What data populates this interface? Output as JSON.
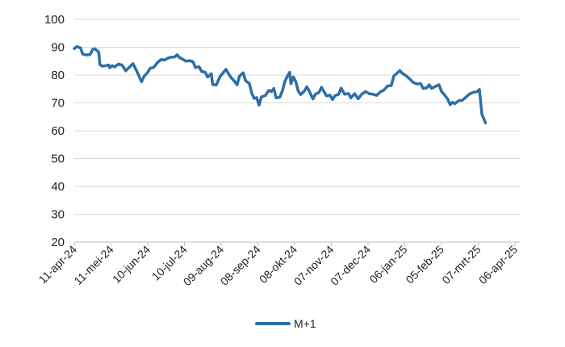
{
  "chart_data": {
    "type": "line",
    "title": "",
    "xlabel": "",
    "ylabel": "",
    "ylim": [
      20,
      100
    ],
    "yticks": [
      20,
      30,
      40,
      50,
      60,
      70,
      80,
      90,
      100
    ],
    "xlim": [
      "2024-04-11",
      "2025-04-10"
    ],
    "grid": "horizontal",
    "legend_position": "bottom",
    "color": "#2e6ea6",
    "x_ticks": [
      {
        "date": "2024-04-11",
        "label": "11-apr-24"
      },
      {
        "date": "2024-05-11",
        "label": "11-mei-24"
      },
      {
        "date": "2024-06-10",
        "label": "10-jun-24"
      },
      {
        "date": "2024-07-10",
        "label": "10-jul-24"
      },
      {
        "date": "2024-08-09",
        "label": "09-aug-24"
      },
      {
        "date": "2024-09-08",
        "label": "08-sep-24"
      },
      {
        "date": "2024-10-08",
        "label": "08-okt-24"
      },
      {
        "date": "2024-11-07",
        "label": "07-nov-24"
      },
      {
        "date": "2024-12-07",
        "label": "07-dec-24"
      },
      {
        "date": "2025-01-06",
        "label": "06-jan-25"
      },
      {
        "date": "2025-02-05",
        "label": "05-feb-25"
      },
      {
        "date": "2025-03-07",
        "label": "07-mrt-25"
      },
      {
        "date": "2025-04-06",
        "label": "06-apr-25"
      }
    ],
    "series": [
      {
        "name": "M+1",
        "points": [
          [
            "2024-04-11",
            89.5
          ],
          [
            "2024-04-13",
            90.2
          ],
          [
            "2024-04-16",
            89.8
          ],
          [
            "2024-04-18",
            87.5
          ],
          [
            "2024-04-21",
            87.2
          ],
          [
            "2024-04-24",
            87.4
          ],
          [
            "2024-04-26",
            89.2
          ],
          [
            "2024-04-28",
            89.4
          ],
          [
            "2024-05-01",
            88.2
          ],
          [
            "2024-05-02",
            83.8
          ],
          [
            "2024-05-04",
            83.2
          ],
          [
            "2024-05-07",
            83.4
          ],
          [
            "2024-05-09",
            83.6
          ],
          [
            "2024-05-10",
            82.6
          ],
          [
            "2024-05-12",
            83.4
          ],
          [
            "2024-05-14",
            82.9
          ],
          [
            "2024-05-17",
            83.9
          ],
          [
            "2024-05-20",
            83.6
          ],
          [
            "2024-05-22",
            82.3
          ],
          [
            "2024-05-23",
            81.5
          ],
          [
            "2024-05-26",
            82.8
          ],
          [
            "2024-05-29",
            84.1
          ],
          [
            "2024-06-01",
            81.5
          ],
          [
            "2024-06-03",
            79.5
          ],
          [
            "2024-06-05",
            77.6
          ],
          [
            "2024-06-07",
            79.5
          ],
          [
            "2024-06-10",
            81.0
          ],
          [
            "2024-06-12",
            82.4
          ],
          [
            "2024-06-15",
            82.8
          ],
          [
            "2024-06-18",
            84.5
          ],
          [
            "2024-06-21",
            85.6
          ],
          [
            "2024-06-24",
            85.4
          ],
          [
            "2024-06-26",
            86.0
          ],
          [
            "2024-06-29",
            86.4
          ],
          [
            "2024-07-02",
            86.5
          ],
          [
            "2024-07-04",
            87.3
          ],
          [
            "2024-07-06",
            86.3
          ],
          [
            "2024-07-09",
            85.6
          ],
          [
            "2024-07-11",
            85.0
          ],
          [
            "2024-07-14",
            85.2
          ],
          [
            "2024-07-17",
            84.8
          ],
          [
            "2024-07-19",
            82.7
          ],
          [
            "2024-07-22",
            83.0
          ],
          [
            "2024-07-24",
            81.3
          ],
          [
            "2024-07-27",
            81.0
          ],
          [
            "2024-07-29",
            79.3
          ],
          [
            "2024-08-01",
            80.5
          ],
          [
            "2024-08-02",
            76.6
          ],
          [
            "2024-08-05",
            76.4
          ],
          [
            "2024-08-08",
            79.4
          ],
          [
            "2024-08-11",
            81.0
          ],
          [
            "2024-08-13",
            82.1
          ],
          [
            "2024-08-15",
            80.5
          ],
          [
            "2024-08-17",
            79.2
          ],
          [
            "2024-08-20",
            77.7
          ],
          [
            "2024-08-22",
            76.5
          ],
          [
            "2024-08-24",
            79.6
          ],
          [
            "2024-08-27",
            80.8
          ],
          [
            "2024-08-29",
            77.9
          ],
          [
            "2024-09-01",
            77.0
          ],
          [
            "2024-09-03",
            73.5
          ],
          [
            "2024-09-05",
            71.6
          ],
          [
            "2024-09-07",
            71.9
          ],
          [
            "2024-09-09",
            69.2
          ],
          [
            "2024-09-11",
            72.2
          ],
          [
            "2024-09-14",
            72.6
          ],
          [
            "2024-09-17",
            74.5
          ],
          [
            "2024-09-19",
            74.1
          ],
          [
            "2024-09-21",
            75.2
          ],
          [
            "2024-09-23",
            71.8
          ],
          [
            "2024-09-26",
            72.1
          ],
          [
            "2024-09-28",
            74.3
          ],
          [
            "2024-09-30",
            77.6
          ],
          [
            "2024-10-02",
            79.5
          ],
          [
            "2024-10-04",
            81.0
          ],
          [
            "2024-10-05",
            76.9
          ],
          [
            "2024-10-07",
            79.3
          ],
          [
            "2024-10-09",
            77.6
          ],
          [
            "2024-10-11",
            74.2
          ],
          [
            "2024-10-13",
            73.0
          ],
          [
            "2024-10-16",
            74.3
          ],
          [
            "2024-10-18",
            75.8
          ],
          [
            "2024-10-20",
            74.2
          ],
          [
            "2024-10-23",
            71.4
          ],
          [
            "2024-10-25",
            73.1
          ],
          [
            "2024-10-28",
            73.8
          ],
          [
            "2024-10-30",
            75.6
          ],
          [
            "2024-11-01",
            74.1
          ],
          [
            "2024-11-03",
            72.5
          ],
          [
            "2024-11-06",
            72.8
          ],
          [
            "2024-11-08",
            71.2
          ],
          [
            "2024-11-10",
            72.6
          ],
          [
            "2024-11-13",
            73.1
          ],
          [
            "2024-11-15",
            75.3
          ],
          [
            "2024-11-18",
            73.1
          ],
          [
            "2024-11-21",
            73.4
          ],
          [
            "2024-11-23",
            71.8
          ],
          [
            "2024-11-26",
            73.3
          ],
          [
            "2024-11-29",
            71.5
          ],
          [
            "2024-12-02",
            73.2
          ],
          [
            "2024-12-05",
            74.1
          ],
          [
            "2024-12-08",
            73.3
          ],
          [
            "2024-12-11",
            73.1
          ],
          [
            "2024-12-14",
            72.7
          ],
          [
            "2024-12-17",
            73.9
          ],
          [
            "2024-12-20",
            74.6
          ],
          [
            "2024-12-23",
            76.1
          ],
          [
            "2024-12-26",
            76.2
          ],
          [
            "2024-12-28",
            79.6
          ],
          [
            "2024-12-30",
            80.4
          ],
          [
            "2025-01-02",
            81.6
          ],
          [
            "2025-01-04",
            80.6
          ],
          [
            "2025-01-07",
            79.8
          ],
          [
            "2025-01-10",
            78.6
          ],
          [
            "2025-01-13",
            77.3
          ],
          [
            "2025-01-16",
            76.8
          ],
          [
            "2025-01-19",
            76.9
          ],
          [
            "2025-01-21",
            75.2
          ],
          [
            "2025-01-24",
            75.4
          ],
          [
            "2025-01-26",
            76.5
          ],
          [
            "2025-01-28",
            75.2
          ],
          [
            "2025-01-31",
            75.9
          ],
          [
            "2025-02-03",
            76.5
          ],
          [
            "2025-02-05",
            74.2
          ],
          [
            "2025-02-07",
            73.1
          ],
          [
            "2025-02-10",
            71.5
          ],
          [
            "2025-02-12",
            69.4
          ],
          [
            "2025-02-14",
            70.2
          ],
          [
            "2025-02-16",
            69.7
          ],
          [
            "2025-02-19",
            70.8
          ],
          [
            "2025-02-22",
            70.9
          ],
          [
            "2025-02-25",
            72.1
          ],
          [
            "2025-02-28",
            73.2
          ],
          [
            "2025-03-03",
            73.8
          ],
          [
            "2025-03-06",
            74.0
          ],
          [
            "2025-03-08",
            74.8
          ],
          [
            "2025-03-10",
            66.0
          ],
          [
            "2025-03-13",
            62.8
          ]
        ]
      }
    ]
  }
}
